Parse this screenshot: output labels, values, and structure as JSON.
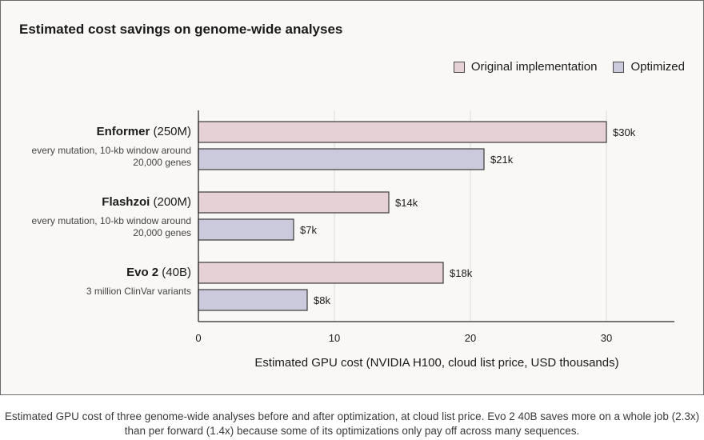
{
  "caption": "Estimated GPU cost of three genome-wide analyses before and after optimization, at cloud list price. Evo 2 40B saves more on a whole job (2.3x) than per forward (1.4x) because some of its optimizations only pay off across many sequences.",
  "colors": {
    "original": "#e6d2d6",
    "optimized": "#cbcadd",
    "bar_stroke": "#3a3a3a",
    "grid": "#dcdcdc",
    "axis": "#2a2a2a"
  },
  "chart_data": {
    "type": "bar",
    "orientation": "horizontal",
    "title": "Estimated cost savings on genome-wide analyses",
    "xlabel": "Estimated GPU cost (NVIDIA H100, cloud list price, USD thousands)",
    "ylabel": "",
    "xlim": [
      0,
      35
    ],
    "xticks": [
      0,
      10,
      20,
      30
    ],
    "grid": "vertical",
    "legend_position": "top-right",
    "categories": [
      {
        "name": "Enformer",
        "size": "(250M)",
        "note_line1": "every mutation, 10-kb window around",
        "note_line2": "20,000 genes"
      },
      {
        "name": "Flashzoi",
        "size": "(200M)",
        "note_line1": "every mutation, 10-kb window around",
        "note_line2": "20,000 genes"
      },
      {
        "name": "Evo 2",
        "size": "(40B)",
        "note_line1": "3 million ClinVar variants",
        "note_line2": ""
      }
    ],
    "series": [
      {
        "name": "Original implementation",
        "values": [
          30,
          14,
          18
        ],
        "labels": [
          "$30k",
          "$14k",
          "$18k"
        ]
      },
      {
        "name": "Optimized",
        "values": [
          21,
          7,
          8
        ],
        "labels": [
          "$21k",
          "$7k",
          "$8k"
        ]
      }
    ]
  }
}
